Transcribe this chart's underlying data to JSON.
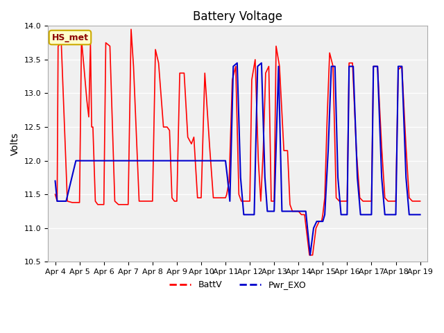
{
  "title": "Battery Voltage",
  "ylabel": "Volts",
  "ylim": [
    10.5,
    14.0
  ],
  "yticks": [
    10.5,
    11.0,
    11.5,
    12.0,
    12.5,
    13.0,
    13.5,
    14.0
  ],
  "figure_bg": "#ffffff",
  "plot_bg": "#f0f0f0",
  "grid_color": "#ffffff",
  "annotation_text": "HS_met",
  "annotation_box_facecolor": "#ffffcc",
  "annotation_box_edgecolor": "#ccaa00",
  "annotation_text_color": "#8b0000",
  "line1_color": "#ff0000",
  "line1_label": "BattV",
  "line2_color": "#0000cc",
  "line2_label": "Pwr_EXO",
  "x_tick_labels": [
    "Apr 4",
    "Apr 5",
    "Apr 6",
    "Apr 7",
    "Apr 8",
    "Apr 9",
    "Apr 10",
    "Apr 11",
    "Apr 12",
    "Apr 13",
    "Apr 14",
    "Apr 15",
    "Apr 16",
    "Apr 17",
    "Apr 18",
    "Apr 19"
  ],
  "title_fontsize": 12,
  "label_fontsize": 10,
  "tick_fontsize": 8,
  "batt_x": [
    0.0,
    0.08,
    0.12,
    0.25,
    0.5,
    0.7,
    0.9,
    1.0,
    1.08,
    1.18,
    1.3,
    1.38,
    1.45,
    1.5,
    1.55,
    1.65,
    1.75,
    1.9,
    2.0,
    2.08,
    2.25,
    2.45,
    2.6,
    2.9,
    3.0,
    3.12,
    3.22,
    3.45,
    3.6,
    3.9,
    4.0,
    4.12,
    4.25,
    4.45,
    4.6,
    4.7,
    4.8,
    4.9,
    5.0,
    5.12,
    5.3,
    5.45,
    5.6,
    5.7,
    5.85,
    5.9,
    6.0,
    6.15,
    6.35,
    6.5,
    6.7,
    6.85,
    6.9,
    7.0,
    7.05,
    7.15,
    7.28,
    7.42,
    7.55,
    7.65,
    7.8,
    7.9,
    8.0,
    8.08,
    8.22,
    8.35,
    8.45,
    8.55,
    8.65,
    8.78,
    8.88,
    8.95,
    9.0,
    9.08,
    9.22,
    9.4,
    9.55,
    9.65,
    9.75,
    9.88,
    9.95,
    10.0,
    10.12,
    10.25,
    10.45,
    10.58,
    10.72,
    10.85,
    10.95,
    11.0,
    11.08,
    11.18,
    11.28,
    11.42,
    11.55,
    11.68,
    11.8,
    11.9,
    12.0,
    12.08,
    12.22,
    12.38,
    12.52,
    12.65,
    12.75,
    12.88,
    12.95,
    13.0,
    13.08,
    13.25,
    13.42,
    13.55,
    13.68,
    13.8,
    13.9,
    14.0,
    14.1,
    14.25,
    14.42,
    14.55,
    14.68,
    14.8,
    14.9,
    15.0
  ],
  "batt_y": [
    11.5,
    11.4,
    13.7,
    13.75,
    11.4,
    11.38,
    11.38,
    11.38,
    13.8,
    13.4,
    12.9,
    12.65,
    13.75,
    12.5,
    12.5,
    11.4,
    11.35,
    11.35,
    11.35,
    13.75,
    13.7,
    11.4,
    11.35,
    11.35,
    11.35,
    13.95,
    13.4,
    11.4,
    11.4,
    11.4,
    11.4,
    13.65,
    13.45,
    12.5,
    12.5,
    12.45,
    11.45,
    11.4,
    11.4,
    13.3,
    13.3,
    12.35,
    12.25,
    12.35,
    11.45,
    11.45,
    11.45,
    13.3,
    12.2,
    11.45,
    11.45,
    11.45,
    11.45,
    11.45,
    11.5,
    11.7,
    13.2,
    13.4,
    11.5,
    11.4,
    11.4,
    11.4,
    11.4,
    13.2,
    13.5,
    12.0,
    11.4,
    12.15,
    13.3,
    13.4,
    11.4,
    11.4,
    11.4,
    13.7,
    13.4,
    12.15,
    12.15,
    11.35,
    11.25,
    11.25,
    11.25,
    11.25,
    11.2,
    11.2,
    10.6,
    10.6,
    11.0,
    11.1,
    11.1,
    11.2,
    11.45,
    12.65,
    13.6,
    13.4,
    11.45,
    11.4,
    11.4,
    11.4,
    11.4,
    13.45,
    13.45,
    12.15,
    11.45,
    11.4,
    11.4,
    11.4,
    11.4,
    11.4,
    13.4,
    13.4,
    12.2,
    11.45,
    11.4,
    11.4,
    11.4,
    11.4,
    13.35,
    13.4,
    12.2,
    11.45,
    11.4,
    11.4,
    11.4,
    11.4
  ],
  "pwr_x": [
    0.0,
    0.08,
    0.45,
    0.85,
    0.85,
    6.88,
    6.88,
    7.0,
    7.08,
    7.18,
    7.32,
    7.48,
    7.62,
    7.75,
    7.88,
    7.95,
    8.0,
    8.18,
    8.32,
    8.48,
    8.62,
    8.72,
    8.85,
    8.95,
    9.0,
    9.18,
    9.32,
    9.48,
    9.65,
    9.8,
    9.95,
    10.0,
    10.15,
    10.3,
    10.48,
    10.62,
    10.75,
    10.88,
    10.95,
    11.0,
    11.08,
    11.22,
    11.35,
    11.5,
    11.62,
    11.75,
    11.88,
    11.95,
    12.0,
    12.08,
    12.25,
    12.42,
    12.55,
    12.7,
    12.82,
    12.95,
    13.0,
    13.08,
    13.25,
    13.42,
    13.55,
    13.68,
    13.82,
    13.95,
    14.0,
    14.1,
    14.25,
    14.42,
    14.55,
    14.68,
    14.82,
    14.95,
    15.0
  ],
  "pwr_y": [
    11.7,
    11.4,
    11.4,
    12.0,
    12.0,
    12.0,
    12.0,
    12.0,
    11.75,
    11.4,
    13.4,
    13.45,
    11.75,
    11.2,
    11.2,
    11.2,
    11.2,
    11.2,
    13.4,
    13.45,
    11.75,
    11.25,
    11.25,
    11.25,
    11.25,
    13.4,
    11.25,
    11.25,
    11.25,
    11.25,
    11.25,
    11.25,
    11.25,
    11.25,
    10.6,
    11.0,
    11.1,
    11.1,
    11.1,
    11.1,
    11.2,
    12.15,
    13.4,
    13.4,
    11.75,
    11.2,
    11.2,
    11.2,
    11.2,
    13.4,
    13.4,
    11.75,
    11.2,
    11.2,
    11.2,
    11.2,
    11.2,
    13.4,
    13.4,
    11.75,
    11.2,
    11.2,
    11.2,
    11.2,
    11.2,
    13.4,
    13.4,
    11.75,
    11.2,
    11.2,
    11.2,
    11.2,
    11.2
  ]
}
